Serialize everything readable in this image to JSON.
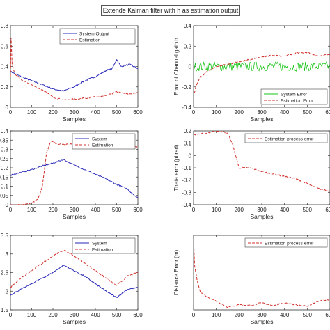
{
  "figure_title": "Extende Kalman filter with h as estimation output",
  "colors": {
    "blue": "#2a2ab8",
    "red": "#d0302c",
    "green": "#18c418",
    "axis": "#333333"
  },
  "chart_data": [
    {
      "type": "line",
      "xlabel": "Samples",
      "ylabel": "",
      "xlim": [
        0,
        600
      ],
      "ylim": [
        0,
        0.8
      ],
      "xticks": [
        "0",
        "100",
        "200",
        "300",
        "400",
        "500",
        "600"
      ],
      "yticks": [
        "0",
        "0.2",
        "0.4",
        "0.6",
        "0.8"
      ],
      "legend": "top-right",
      "series": [
        {
          "name": "System Output",
          "color": "blue",
          "dash": false,
          "x": [
            0,
            20,
            50,
            100,
            150,
            200,
            250,
            300,
            350,
            400,
            450,
            480,
            500,
            520,
            560,
            600
          ],
          "values": [
            0.35,
            0.33,
            0.3,
            0.26,
            0.22,
            0.18,
            0.16,
            0.2,
            0.26,
            0.3,
            0.36,
            0.38,
            0.47,
            0.4,
            0.42,
            0.38
          ]
        },
        {
          "name": "Estimation",
          "color": "red",
          "dash": true,
          "x": [
            0,
            3,
            8,
            20,
            50,
            100,
            150,
            200,
            250,
            300,
            350,
            400,
            450,
            500,
            550,
            600
          ],
          "values": [
            0.3,
            0.68,
            0.42,
            0.33,
            0.27,
            0.22,
            0.17,
            0.1,
            0.07,
            0.08,
            0.09,
            0.1,
            0.11,
            0.15,
            0.13,
            0.14
          ]
        }
      ]
    },
    {
      "type": "line",
      "xlabel": "Samples",
      "ylabel": "Error of Channel gain h",
      "xlim": [
        0,
        600
      ],
      "ylim": [
        -0.4,
        0.4
      ],
      "xticks": [
        "0",
        "100",
        "200",
        "300",
        "400",
        "500",
        "600"
      ],
      "yticks": [
        "-0.4",
        "-0.2",
        "0",
        "0.2",
        "0.4"
      ],
      "legend": "bottom-right",
      "series": [
        {
          "name": "System Error",
          "color": "green",
          "dash": false,
          "noise": 0.045,
          "x": [
            0,
            600
          ],
          "values": [
            0,
            0
          ]
        },
        {
          "name": "Estimation Error",
          "color": "red",
          "dash": true,
          "x": [
            0,
            10,
            30,
            60,
            100,
            150,
            200,
            250,
            300,
            350,
            400,
            450,
            500,
            550,
            600
          ],
          "values": [
            -0.3,
            -0.2,
            -0.1,
            -0.05,
            0.0,
            0.02,
            0.05,
            0.07,
            0.09,
            0.11,
            0.1,
            0.13,
            0.14,
            0.1,
            0.12
          ]
        }
      ]
    },
    {
      "type": "line",
      "xlabel": "Samples",
      "ylabel": "",
      "xlim": [
        0,
        600
      ],
      "ylim": [
        0,
        0.4
      ],
      "xticks": [
        "0",
        "100",
        "200",
        "300",
        "400",
        "500",
        "600"
      ],
      "yticks": [
        "0",
        "0.05",
        "0.1",
        "0.15",
        "0.2",
        "0.25",
        "0.3",
        "0.35",
        "0.4"
      ],
      "legend": "top-right",
      "series": [
        {
          "name": "System",
          "color": "blue",
          "dash": false,
          "x": [
            0,
            50,
            100,
            150,
            200,
            250,
            300,
            350,
            400,
            450,
            500,
            550,
            600
          ],
          "values": [
            0.16,
            0.175,
            0.19,
            0.21,
            0.225,
            0.245,
            0.215,
            0.19,
            0.165,
            0.14,
            0.11,
            0.085,
            0.035
          ]
        },
        {
          "name": "Estimation",
          "color": "red",
          "dash": true,
          "x": [
            0,
            50,
            100,
            130,
            150,
            170,
            190,
            220,
            250,
            300,
            350,
            400,
            450,
            500,
            550,
            600
          ],
          "values": [
            0.0,
            0.0,
            0.01,
            0.03,
            0.1,
            0.28,
            0.345,
            0.33,
            0.325,
            0.33,
            0.32,
            0.325,
            0.32,
            0.315,
            0.33,
            0.31
          ]
        }
      ]
    },
    {
      "type": "line",
      "xlabel": "Samples",
      "ylabel": "Theta error (pi rad)",
      "xlim": [
        0,
        600
      ],
      "ylim": [
        -0.4,
        0.2
      ],
      "xticks": [
        "0",
        "100",
        "200",
        "300",
        "400",
        "500",
        "600"
      ],
      "yticks": [
        "-0.4",
        "-0.3",
        "-0.2",
        "-0.1",
        "0",
        "0.1",
        "0.2"
      ],
      "legend": "top-right",
      "series": [
        {
          "name": "Estimation process error",
          "color": "red",
          "dash": true,
          "x": [
            0,
            50,
            100,
            120,
            150,
            170,
            200,
            250,
            300,
            350,
            400,
            450,
            500,
            550,
            600
          ],
          "values": [
            0.17,
            0.18,
            0.2,
            0.2,
            0.18,
            0.1,
            -0.1,
            -0.1,
            -0.13,
            -0.15,
            -0.17,
            -0.19,
            -0.23,
            -0.27,
            -0.29
          ]
        }
      ]
    },
    {
      "type": "line",
      "xlabel": "Samples",
      "ylabel": "",
      "xlim": [
        0,
        600
      ],
      "ylim": [
        1.5,
        3.5
      ],
      "xticks": [
        "0",
        "100",
        "200",
        "300",
        "400",
        "500",
        "600"
      ],
      "yticks": [
        "1.5",
        "2",
        "2.5",
        "3",
        "3.5"
      ],
      "legend": "top-right",
      "series": [
        {
          "name": "System",
          "color": "blue",
          "dash": false,
          "x": [
            0,
            50,
            100,
            150,
            200,
            250,
            300,
            350,
            400,
            450,
            500,
            550,
            600
          ],
          "values": [
            1.9,
            2.05,
            2.2,
            2.35,
            2.5,
            2.7,
            2.55,
            2.4,
            2.2,
            2.0,
            1.83,
            2.05,
            2.1
          ]
        },
        {
          "name": "Estimation",
          "color": "red",
          "dash": true,
          "x": [
            0,
            50,
            100,
            150,
            200,
            250,
            300,
            350,
            400,
            450,
            500,
            550,
            600
          ],
          "values": [
            2.1,
            2.35,
            2.55,
            2.75,
            2.95,
            3.1,
            2.95,
            2.75,
            2.55,
            2.35,
            2.15,
            2.4,
            2.5
          ]
        }
      ]
    },
    {
      "type": "line",
      "xlabel": "Samples",
      "ylabel": "Distance Error (m)",
      "xlim": [
        0,
        600
      ],
      "ylim": [
        -0.5,
        0.35
      ],
      "xticks": [
        "0",
        "100",
        "200",
        "300",
        "400",
        "500",
        "600"
      ],
      "yticks": [],
      "legend": "top-right",
      "series": [
        {
          "name": "Estimation process error",
          "color": "red",
          "dash": true,
          "x": [
            0,
            5,
            15,
            30,
            60,
            100,
            150,
            200,
            250,
            300,
            350,
            400,
            450,
            500,
            550,
            600
          ],
          "values": [
            0.3,
            0.0,
            -0.15,
            -0.3,
            -0.35,
            -0.4,
            -0.47,
            -0.44,
            -0.45,
            -0.42,
            -0.45,
            -0.42,
            -0.44,
            -0.46,
            -0.4,
            -0.38
          ]
        }
      ]
    }
  ]
}
